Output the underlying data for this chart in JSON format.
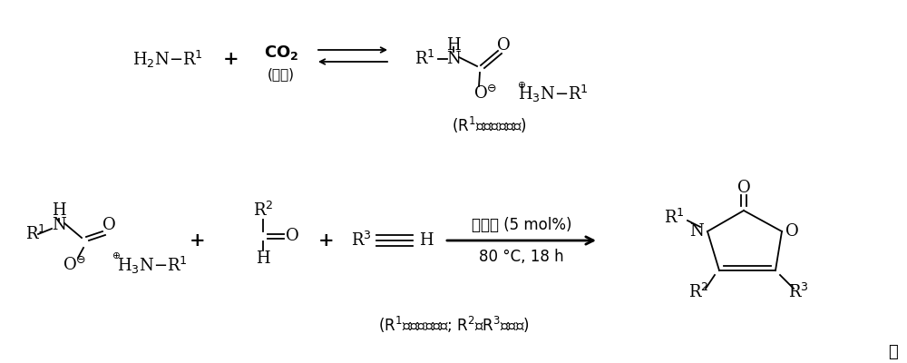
{
  "bg_color": "#ffffff",
  "fig_width": 10.0,
  "fig_height": 4.0,
  "dpi": 100,
  "top_reactant1": "H$_2$N$-$R$^1$",
  "top_plus": "+",
  "top_co2": "$\\mathbf{CO_2}$",
  "top_co2_sub": "(气球)",
  "top_product_label": "(R$^1$为烷基、芳基)",
  "bot_plus1": "+",
  "bot_plus2": "+",
  "bot_aldehyde_R2": "R$^2$",
  "bot_aldehyde_O": "O",
  "bot_aldehyde_H": "H",
  "bot_alkyne_R3": "R$^3$",
  "bot_alkyne_H": "H",
  "bot_arrow_label1": "催化剂 (5 mol%)",
  "bot_arrow_label2": "80 °C, 18 h",
  "bot_product_label": "(R$^1$为烷基、芳基; R$^2$、R$^3$为芳基)",
  "period": "。"
}
